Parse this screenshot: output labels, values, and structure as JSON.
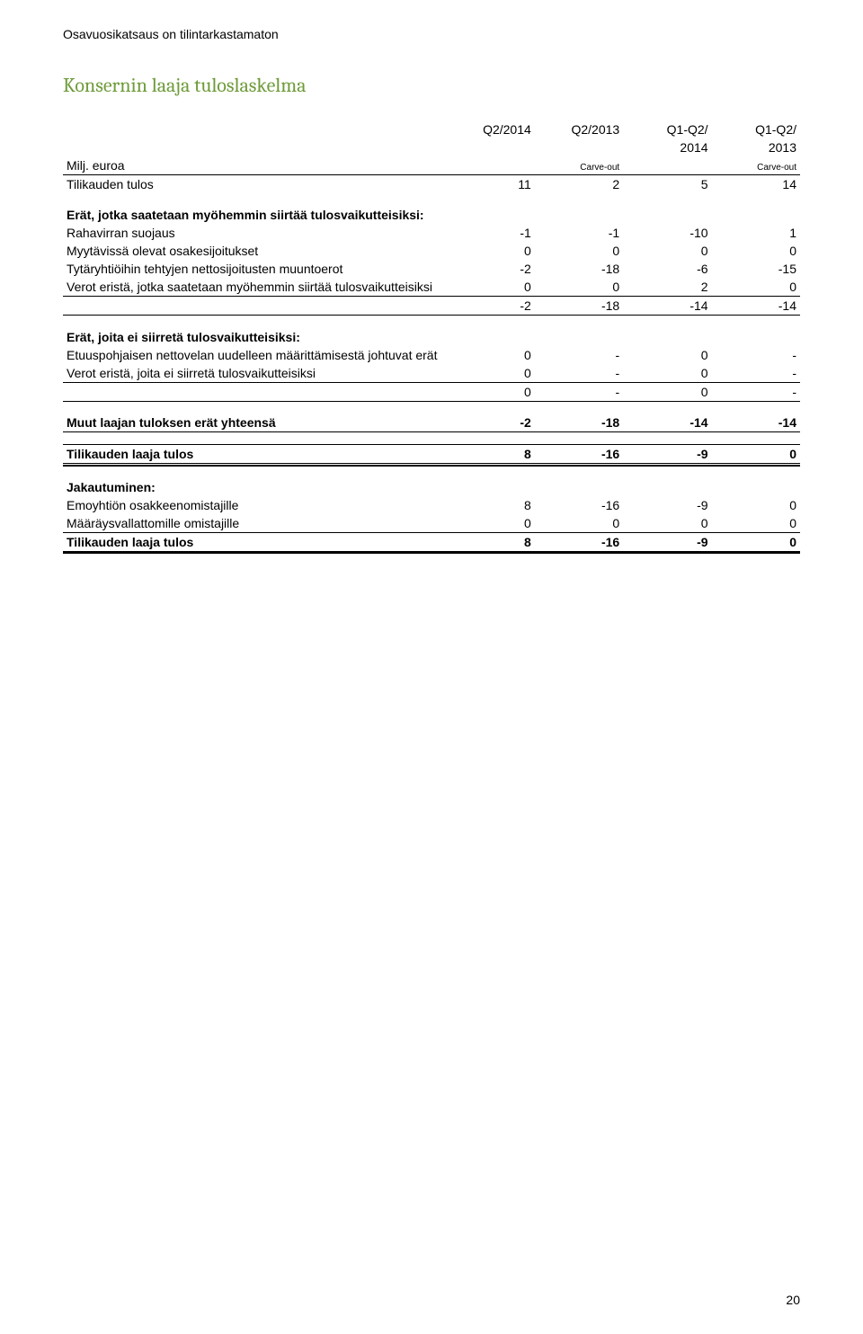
{
  "header_note": "Osavuosikatsaus on tilintarkastamaton",
  "title": "Konsernin laaja tuloslaskelma",
  "page_number": "20",
  "columns": {
    "row_label": "Milj. euroa",
    "c1": "Q2/2014",
    "c2": "Q2/2013",
    "c3_top": "Q1-Q2/",
    "c3_bot": "2014",
    "c4_top": "Q1-Q2/",
    "c4_bot": "2013",
    "carve_out": "Carve-out"
  },
  "rows": {
    "tilikauden_tulos": {
      "label": "Tilikauden tulos",
      "v": [
        "11",
        "2",
        "5",
        "14"
      ]
    },
    "section1_title": "Erät, jotka saatetaan myöhemmin siirtää tulosvaikutteisiksi:",
    "rahavirran": {
      "label": "Rahavirran suojaus",
      "v": [
        "-1",
        "-1",
        "-10",
        "1"
      ]
    },
    "myytavissa": {
      "label": "Myytävissä olevat osakesijoitukset",
      "v": [
        "0",
        "0",
        "0",
        "0"
      ]
    },
    "tytaryhtio": {
      "label": "Tytäryhtiöihin tehtyjen nettosijoitusten muuntoerot",
      "v": [
        "-2",
        "-18",
        "-6",
        "-15"
      ]
    },
    "verot1": {
      "label": "Verot eristä, jotka saatetaan myöhemmin siirtää tulosvaikutteisiksi",
      "v": [
        "0",
        "0",
        "2",
        "0"
      ]
    },
    "sub1": {
      "v": [
        "-2",
        "-18",
        "-14",
        "-14"
      ]
    },
    "section2_title": "Erät, joita ei siirretä tulosvaikutteisiksi:",
    "etuus": {
      "label": "Etuuspohjaisen nettovelan uudelleen määrittämisestä johtuvat erät",
      "v": [
        "0",
        "-",
        "0",
        "-"
      ]
    },
    "verot2": {
      "label": "Verot eristä, joita ei siirretä tulosvaikutteisiksi",
      "v": [
        "0",
        "-",
        "0",
        "-"
      ]
    },
    "sub2": {
      "v": [
        "0",
        "-",
        "0",
        "-"
      ]
    },
    "muut": {
      "label": "Muut laajan tuloksen erät yhteensä",
      "v": [
        "-2",
        "-18",
        "-14",
        "-14"
      ]
    },
    "laaja_tulos": {
      "label": "Tilikauden laaja tulos",
      "v": [
        "8",
        "-16",
        "-9",
        "0"
      ]
    },
    "jakautuminen_title": "Jakautuminen:",
    "emo": {
      "label": "Emoyhtiön osakkeenomistajille",
      "v": [
        "8",
        "-16",
        "-9",
        "0"
      ]
    },
    "maarays": {
      "label": "Määräysvallattomille omistajille",
      "v": [
        "0",
        "0",
        "0",
        "0"
      ]
    },
    "laaja_tulos2": {
      "label": "Tilikauden laaja tulos",
      "v": [
        "8",
        "-16",
        "-9",
        "0"
      ]
    }
  }
}
